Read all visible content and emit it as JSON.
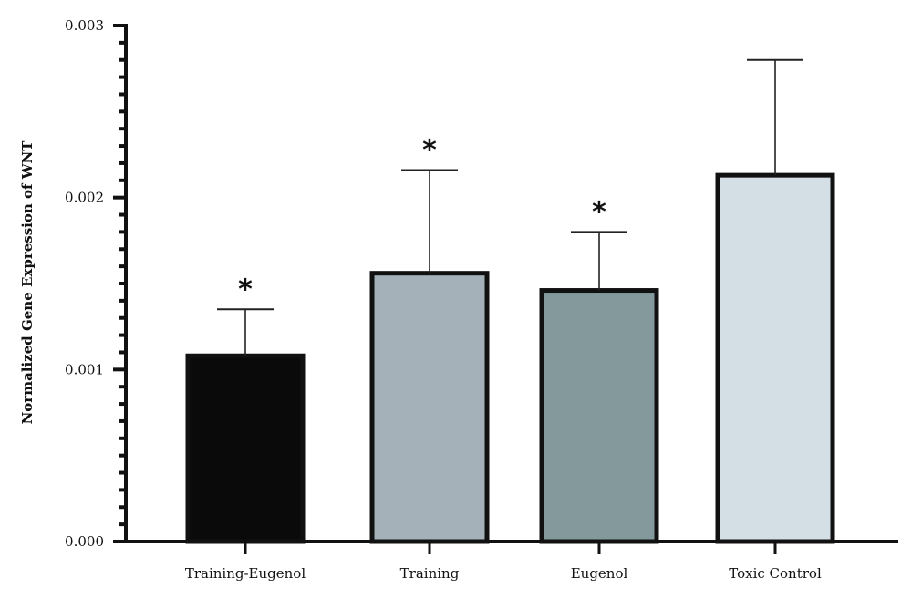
{
  "chart_data": {
    "type": "bar",
    "title": "",
    "xlabel": "",
    "ylabel": "Normalized Gene Expression of WNT",
    "ylim": [
      0,
      0.003
    ],
    "yticks": [
      "0.000",
      "0.001",
      "0.002",
      "0.003"
    ],
    "ytick_values": [
      0,
      0.001,
      0.002,
      0.003
    ],
    "minor_ticks_per_major": 10,
    "categories": [
      "Training-Eugenol",
      "Training",
      "Eugenol",
      "Toxic Control"
    ],
    "values": [
      0.00108,
      0.00156,
      0.00146,
      0.00213
    ],
    "errors": [
      0.00027,
      0.0006,
      0.00034,
      0.00067
    ],
    "significance": [
      "*",
      "*",
      "*",
      ""
    ],
    "colors": [
      "#0a0a0a",
      "#a4b1b8",
      "#84999b",
      "#d4dfe5"
    ],
    "grid": false,
    "legend": "none"
  }
}
